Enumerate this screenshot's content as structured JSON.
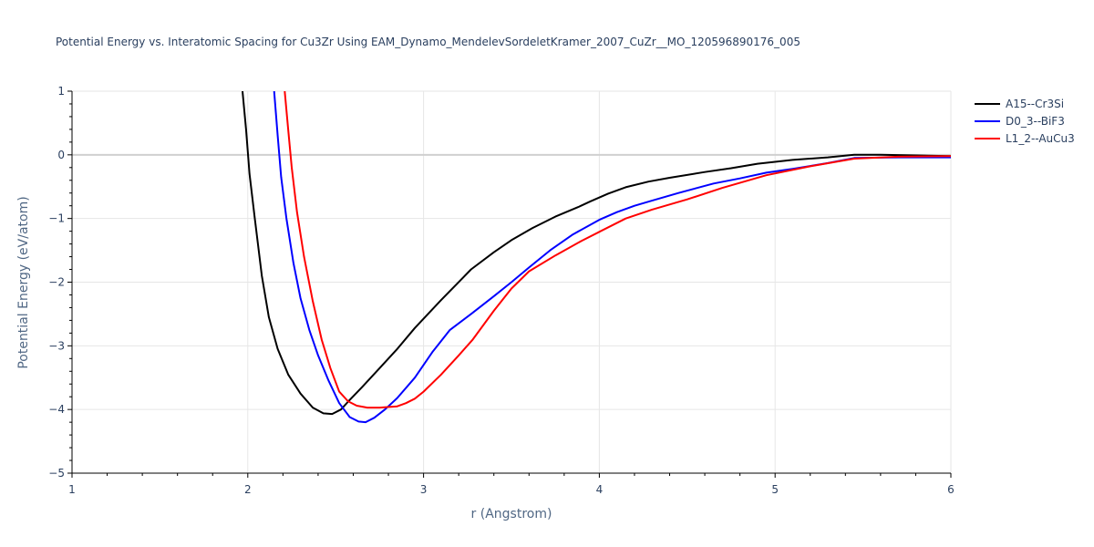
{
  "chart_data": {
    "type": "line",
    "title": "Potential Energy vs. Interatomic Spacing for Cu3Zr Using EAM_Dynamo_MendelevSordeletKramer_2007_CuZr__MO_120596890176_005",
    "xlabel": "r (Angstrom)",
    "ylabel": "Potential Energy (eV/atom)",
    "xlim": [
      1,
      6
    ],
    "ylim": [
      -5,
      1
    ],
    "xticks": [
      "1",
      "2",
      "3",
      "4",
      "5",
      "6"
    ],
    "yticks": [
      "1",
      "0",
      "−1",
      "−2",
      "−3",
      "−4",
      "−5"
    ],
    "grid": true,
    "legend_position": "top-right outside",
    "series": [
      {
        "name": "A15--Cr3Si",
        "color": "#000000",
        "x": [
          1.97,
          1.99,
          2.01,
          2.04,
          2.08,
          2.12,
          2.17,
          2.23,
          2.3,
          2.37,
          2.43,
          2.48,
          2.53,
          2.58,
          2.65,
          2.75,
          2.85,
          2.95,
          3.1,
          3.27,
          3.4,
          3.5,
          3.62,
          3.75,
          3.88,
          3.95,
          4.05,
          4.15,
          4.28,
          4.4,
          4.6,
          4.75,
          4.9,
          5.1,
          5.3,
          5.45,
          5.6,
          5.8,
          6.0
        ],
        "y": [
          1.0,
          0.4,
          -0.3,
          -1.0,
          -1.9,
          -2.55,
          -3.05,
          -3.45,
          -3.75,
          -3.97,
          -4.06,
          -4.07,
          -4.0,
          -3.85,
          -3.65,
          -3.35,
          -3.05,
          -2.72,
          -2.28,
          -1.8,
          -1.53,
          -1.34,
          -1.15,
          -0.97,
          -0.82,
          -0.73,
          -0.61,
          -0.51,
          -0.42,
          -0.36,
          -0.27,
          -0.21,
          -0.14,
          -0.08,
          -0.04,
          0.0,
          0.0,
          -0.01,
          -0.02
        ]
      },
      {
        "name": "D0_3--BiF3",
        "color": "#0000ff",
        "x": [
          2.15,
          2.17,
          2.19,
          2.22,
          2.26,
          2.3,
          2.35,
          2.4,
          2.46,
          2.52,
          2.58,
          2.63,
          2.67,
          2.72,
          2.78,
          2.85,
          2.95,
          3.05,
          3.15,
          3.27,
          3.4,
          3.5,
          3.6,
          3.72,
          3.85,
          4.0,
          4.1,
          4.2,
          4.3,
          4.45,
          4.65,
          4.8,
          4.95,
          5.1,
          5.3,
          5.45,
          5.7,
          6.0
        ],
        "y": [
          1.0,
          0.3,
          -0.35,
          -1.0,
          -1.7,
          -2.25,
          -2.75,
          -3.15,
          -3.55,
          -3.9,
          -4.12,
          -4.19,
          -4.2,
          -4.13,
          -4.0,
          -3.82,
          -3.5,
          -3.1,
          -2.75,
          -2.5,
          -2.22,
          -2.0,
          -1.77,
          -1.5,
          -1.25,
          -1.02,
          -0.9,
          -0.8,
          -0.72,
          -0.6,
          -0.45,
          -0.37,
          -0.28,
          -0.22,
          -0.13,
          -0.05,
          -0.04,
          -0.04
        ]
      },
      {
        "name": "L1_2--AuCu3",
        "color": "#ff0000",
        "x": [
          2.21,
          2.23,
          2.25,
          2.28,
          2.32,
          2.37,
          2.42,
          2.47,
          2.52,
          2.57,
          2.62,
          2.68,
          2.75,
          2.85,
          2.9,
          2.95,
          3.0,
          3.1,
          3.2,
          3.28,
          3.4,
          3.5,
          3.6,
          3.75,
          3.9,
          4.0,
          4.15,
          4.3,
          4.5,
          4.7,
          4.95,
          5.2,
          5.45,
          5.7,
          6.0
        ],
        "y": [
          1.0,
          0.4,
          -0.2,
          -0.9,
          -1.6,
          -2.3,
          -2.9,
          -3.35,
          -3.72,
          -3.87,
          -3.94,
          -3.97,
          -3.97,
          -3.95,
          -3.9,
          -3.83,
          -3.72,
          -3.45,
          -3.15,
          -2.9,
          -2.45,
          -2.1,
          -1.83,
          -1.58,
          -1.35,
          -1.21,
          -1.0,
          -0.86,
          -0.7,
          -0.52,
          -0.32,
          -0.18,
          -0.06,
          -0.03,
          -0.02
        ]
      }
    ]
  }
}
